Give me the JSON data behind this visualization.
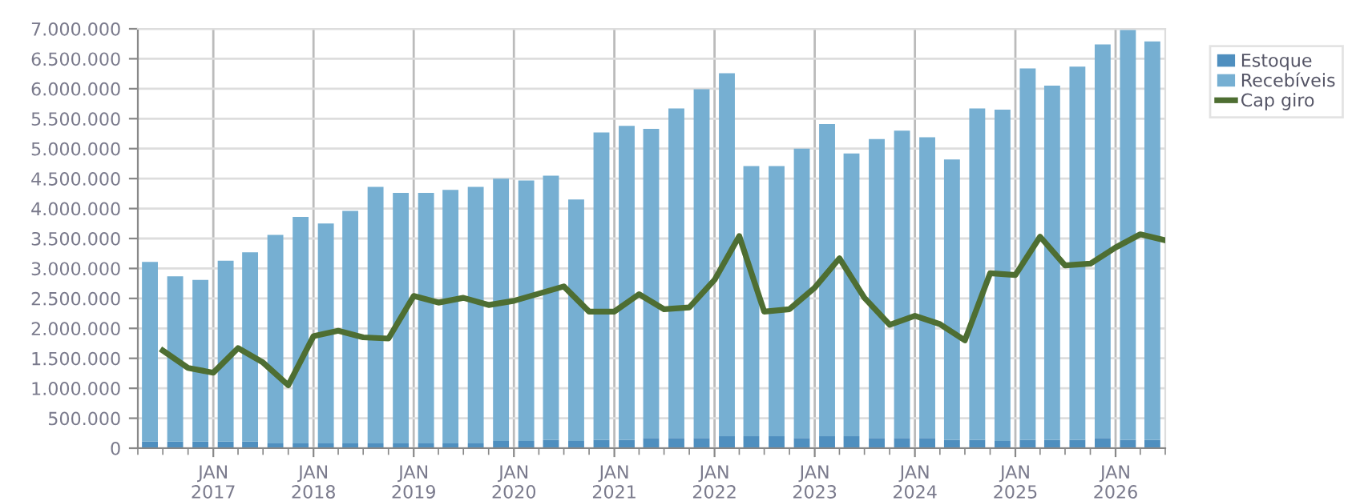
{
  "chart_data": {
    "type": "bar",
    "stacked": true,
    "grid": true,
    "legend": "top right",
    "xlim": [
      "2016-04",
      "2026-07"
    ],
    "xticks": [
      {
        "value": "2016-04",
        "label": null
      },
      {
        "value": "2016-07",
        "label": null
      },
      {
        "value": "2016-10",
        "label": null
      },
      {
        "value": "2017-01",
        "label": "JAN\n2017"
      },
      {
        "value": "2017-04",
        "label": null
      },
      {
        "value": "2017-07",
        "label": null
      },
      {
        "value": "2017-10",
        "label": null
      },
      {
        "value": "2018-01",
        "label": "JAN\n2018"
      },
      {
        "value": "2018-04",
        "label": null
      },
      {
        "value": "2018-07",
        "label": null
      },
      {
        "value": "2018-10",
        "label": null
      },
      {
        "value": "2019-01",
        "label": "JAN\n2019"
      },
      {
        "value": "2019-04",
        "label": null
      },
      {
        "value": "2019-07",
        "label": null
      },
      {
        "value": "2019-10",
        "label": null
      },
      {
        "value": "2020-01",
        "label": "JAN\n2020"
      },
      {
        "value": "2020-04",
        "label": null
      },
      {
        "value": "2020-07",
        "label": null
      },
      {
        "value": "2020-10",
        "label": null
      },
      {
        "value": "2021-01",
        "label": "JAN\n2021"
      },
      {
        "value": "2021-04",
        "label": null
      },
      {
        "value": "2021-07",
        "label": null
      },
      {
        "value": "2021-10",
        "label": null
      },
      {
        "value": "2022-01",
        "label": "JAN\n2022"
      },
      {
        "value": "2022-04",
        "label": null
      },
      {
        "value": "2022-07",
        "label": null
      },
      {
        "value": "2022-10",
        "label": null
      },
      {
        "value": "2023-01",
        "label": "JAN\n2023"
      },
      {
        "value": "2023-04",
        "label": null
      },
      {
        "value": "2023-07",
        "label": null
      },
      {
        "value": "2023-10",
        "label": null
      },
      {
        "value": "2024-01",
        "label": "JAN\n2024"
      },
      {
        "value": "2024-04",
        "label": null
      },
      {
        "value": "2024-07",
        "label": null
      },
      {
        "value": "2024-10",
        "label": null
      },
      {
        "value": "2025-01",
        "label": "JAN\n2025"
      },
      {
        "value": "2025-04",
        "label": null
      },
      {
        "value": "2025-07",
        "label": null
      },
      {
        "value": "2025-10",
        "label": null
      },
      {
        "value": "2026-01",
        "label": "JAN\n2026"
      },
      {
        "value": "2026-04",
        "label": null
      },
      {
        "value": "2026-07",
        "label": null
      }
    ],
    "ylim": [
      0,
      7000000
    ],
    "yticks": [
      {
        "value": 0,
        "label": "0"
      },
      {
        "value": 500000,
        "label": "500.000"
      },
      {
        "value": 1000000,
        "label": "1.000.000"
      },
      {
        "value": 1500000,
        "label": "1.500.000"
      },
      {
        "value": 2000000,
        "label": "2.000.000"
      },
      {
        "value": 2500000,
        "label": "2.500.000"
      },
      {
        "value": 3000000,
        "label": "3.000.000"
      },
      {
        "value": 3500000,
        "label": "3.500.000"
      },
      {
        "value": 4000000,
        "label": "4.000.000"
      },
      {
        "value": 4500000,
        "label": "4.500.000"
      },
      {
        "value": 5000000,
        "label": "5.000.000"
      },
      {
        "value": 5500000,
        "label": "5.500.000"
      },
      {
        "value": 6000000,
        "label": "6.000.000"
      },
      {
        "value": 6500000,
        "label": "6.500.000"
      },
      {
        "value": 7000000,
        "label": "7.000.000"
      }
    ],
    "series": [
      {
        "name": "Estoque",
        "color": "#4f8fbf",
        "x": [
          "2016-05-15",
          "2016-08-15",
          "2016-11-15",
          "2017-02-15",
          "2017-05-15",
          "2017-08-15",
          "2017-11-15",
          "2018-02-15",
          "2018-05-15",
          "2018-08-15",
          "2018-11-15",
          "2019-02-15",
          "2019-05-15",
          "2019-08-15",
          "2019-11-15",
          "2020-02-15",
          "2020-05-15",
          "2020-08-15",
          "2020-11-15",
          "2021-02-15",
          "2021-05-15",
          "2021-08-15",
          "2021-11-15",
          "2022-02-15",
          "2022-05-15",
          "2022-08-15",
          "2022-11-15",
          "2023-02-15",
          "2023-05-15",
          "2023-08-15",
          "2023-11-15",
          "2024-02-15",
          "2024-05-15",
          "2024-08-15",
          "2024-11-15",
          "2025-02-15",
          "2025-05-15",
          "2025-08-15",
          "2025-11-15",
          "2026-02-15",
          "2026-05-15"
        ],
        "values": [
          110000,
          110000,
          110000,
          110000,
          110000,
          80000,
          80000,
          80000,
          80000,
          80000,
          80000,
          80000,
          80000,
          80000,
          120000,
          120000,
          140000,
          120000,
          140000,
          140000,
          170000,
          170000,
          170000,
          200000,
          200000,
          200000,
          170000,
          200000,
          200000,
          170000,
          170000,
          170000,
          140000,
          140000,
          120000,
          140000,
          140000,
          140000,
          170000,
          140000,
          140000
        ]
      },
      {
        "name": "Recebíveis",
        "color": "#76afd2",
        "x": [
          "2016-05-15",
          "2016-08-15",
          "2016-11-15",
          "2017-02-15",
          "2017-05-15",
          "2017-08-15",
          "2017-11-15",
          "2018-02-15",
          "2018-05-15",
          "2018-08-15",
          "2018-11-15",
          "2019-02-15",
          "2019-05-15",
          "2019-08-15",
          "2019-11-15",
          "2020-02-15",
          "2020-05-15",
          "2020-08-15",
          "2020-11-15",
          "2021-02-15",
          "2021-05-15",
          "2021-08-15",
          "2021-11-15",
          "2022-02-15",
          "2022-05-15",
          "2022-08-15",
          "2022-11-15",
          "2023-02-15",
          "2023-05-15",
          "2023-08-15",
          "2023-11-15",
          "2024-02-15",
          "2024-05-15",
          "2024-08-15",
          "2024-11-15",
          "2025-02-15",
          "2025-05-15",
          "2025-08-15",
          "2025-11-15",
          "2026-02-15",
          "2026-05-15"
        ],
        "values": [
          3000000,
          2760000,
          2700000,
          3020000,
          3160000,
          3480000,
          3780000,
          3670000,
          3880000,
          4280000,
          4180000,
          4180000,
          4230000,
          4280000,
          4380000,
          4350000,
          4410000,
          4030000,
          5130000,
          5240000,
          5160000,
          5500000,
          5820000,
          6060000,
          4510000,
          4510000,
          4830000,
          5210000,
          4720000,
          4990000,
          5130000,
          5020000,
          4680000,
          5530000,
          5530000,
          6200000,
          5910000,
          6230000,
          6570000,
          6840000,
          6650000
        ]
      },
      {
        "name": "Cap giro",
        "type": "line",
        "color": "#4e6e32",
        "marker": "none",
        "line_style": "solid",
        "x": [
          "2016-07",
          "2016-10",
          "2017-01",
          "2017-04",
          "2017-07",
          "2017-10",
          "2018-01",
          "2018-04",
          "2018-07",
          "2018-10",
          "2019-01",
          "2019-04",
          "2019-07",
          "2019-10",
          "2020-01",
          "2020-04",
          "2020-07",
          "2020-10",
          "2021-01",
          "2021-04",
          "2021-07",
          "2021-10",
          "2022-01",
          "2022-04",
          "2022-07",
          "2022-10",
          "2023-01",
          "2023-04",
          "2023-07",
          "2023-10",
          "2024-01",
          "2024-04",
          "2024-07",
          "2024-10",
          "2025-01",
          "2025-04",
          "2025-07",
          "2025-10",
          "2026-01",
          "2026-04",
          "2026-07"
        ],
        "values": [
          1630000,
          1340000,
          1260000,
          1670000,
          1430000,
          1050000,
          1870000,
          1960000,
          1850000,
          1830000,
          2540000,
          2430000,
          2510000,
          2390000,
          2460000,
          2580000,
          2700000,
          2280000,
          2280000,
          2570000,
          2320000,
          2350000,
          2810000,
          3540000,
          2280000,
          2320000,
          2680000,
          3170000,
          2510000,
          2060000,
          2210000,
          2070000,
          1800000,
          2920000,
          2890000,
          3530000,
          3050000,
          3080000,
          3350000,
          3570000,
          3470000
        ]
      }
    ]
  }
}
